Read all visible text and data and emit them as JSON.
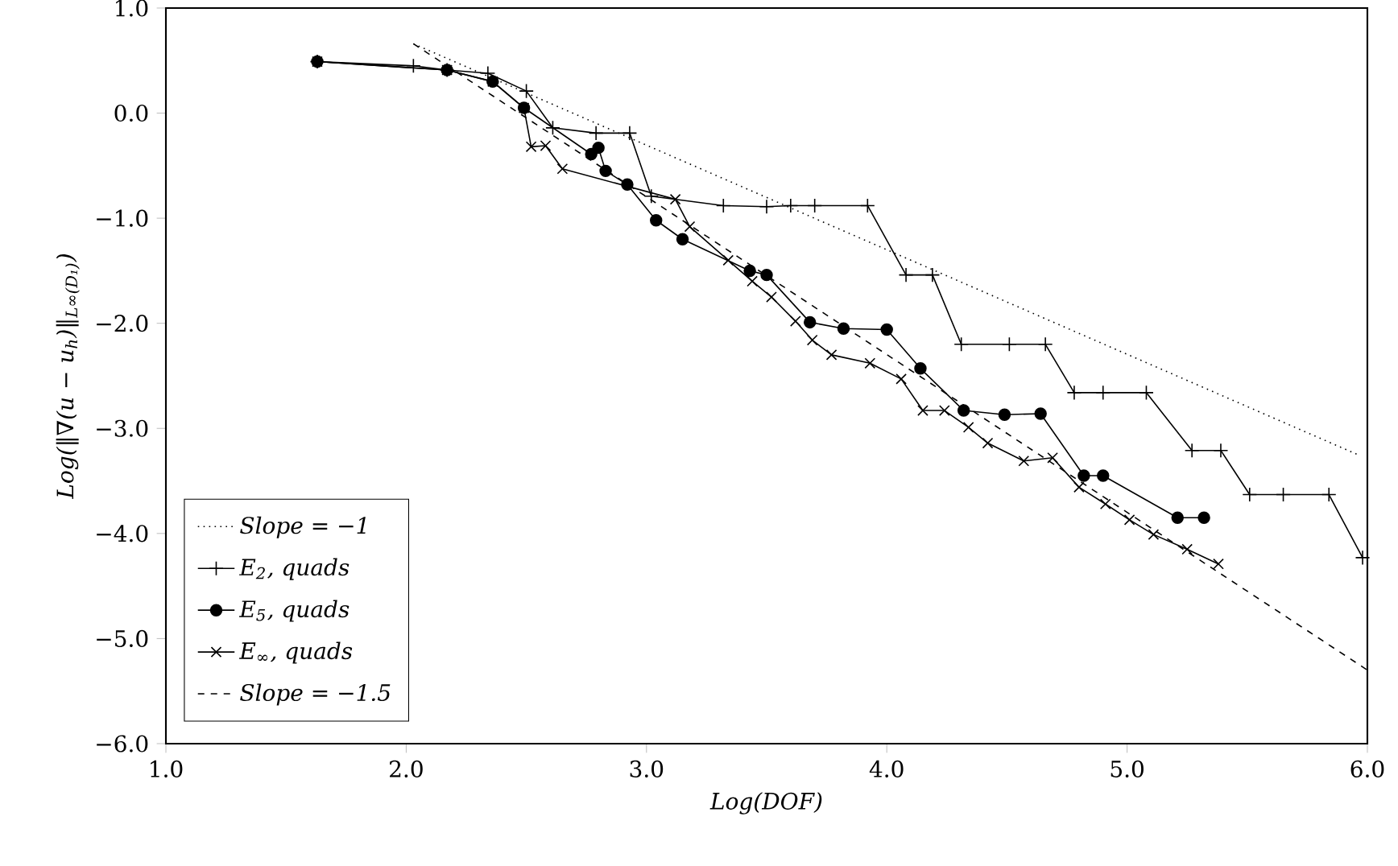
{
  "chart_data": {
    "type": "line",
    "xlabel": "Log(DOF)",
    "ylabel": "Log(‖∇(u − u$_{h}$)‖$_{L∞(D₁)}$)",
    "xlim": [
      1.0,
      6.0
    ],
    "ylim": [
      -6.0,
      1.0
    ],
    "xticks": [
      {
        "value": 1,
        "label": "1.0"
      },
      {
        "value": 2,
        "label": "2.0"
      },
      {
        "value": 3,
        "label": "3.0"
      },
      {
        "value": 4,
        "label": "4.0"
      },
      {
        "value": 5,
        "label": "5.0"
      },
      {
        "value": 6,
        "label": "6.0"
      }
    ],
    "yticks": [
      {
        "value": -6,
        "label": "−6.0"
      },
      {
        "value": -5,
        "label": "−5.0"
      },
      {
        "value": -4,
        "label": "−4.0"
      },
      {
        "value": -3,
        "label": "−3.0"
      },
      {
        "value": -2,
        "label": "−2.0"
      },
      {
        "value": -1,
        "label": "−1.0"
      },
      {
        "value": 0,
        "label": "0.0"
      },
      {
        "value": 1,
        "label": "1.0"
      }
    ],
    "legend": "bottom left",
    "grid": false,
    "series": [
      {
        "name": "Slope = −1",
        "color": "#000000",
        "marker": "none",
        "line_style": "dotted",
        "x": [
          2.03,
          5.96
        ],
        "values": [
          0.66,
          -3.25
        ]
      },
      {
        "name": "E$_{2}$, quads",
        "color": "#000000",
        "marker": "plus",
        "line_style": "solid",
        "x": [
          1.63,
          2.03,
          2.17,
          2.34,
          2.5,
          2.61,
          2.79,
          2.93,
          3.02,
          3.32,
          3.5,
          3.6,
          3.7,
          3.92,
          4.08,
          4.19,
          4.31,
          4.51,
          4.66,
          4.78,
          4.9,
          5.08,
          5.27,
          5.39,
          5.51,
          5.65,
          5.84,
          5.98
        ],
        "values": [
          0.49,
          0.45,
          0.41,
          0.38,
          0.21,
          -0.14,
          -0.19,
          -0.19,
          -0.79,
          -0.88,
          -0.89,
          -0.88,
          -0.88,
          -0.88,
          -1.54,
          -1.54,
          -2.2,
          -2.2,
          -2.2,
          -2.66,
          -2.66,
          -2.66,
          -3.21,
          -3.21,
          -3.63,
          -3.63,
          -3.63,
          -4.23
        ]
      },
      {
        "name": "E$_{5}$, quads",
        "color": "#000000",
        "marker": "circle",
        "line_style": "solid",
        "x": [
          1.63,
          2.17,
          2.36,
          2.49,
          2.77,
          2.8,
          2.83,
          2.92,
          3.04,
          3.15,
          3.43,
          3.5,
          3.68,
          3.82,
          4.0,
          4.14,
          4.32,
          4.49,
          4.64,
          4.82,
          4.9,
          5.21,
          5.32
        ],
        "values": [
          0.49,
          0.41,
          0.3,
          0.05,
          -0.39,
          -0.33,
          -0.55,
          -0.68,
          -1.02,
          -1.2,
          -1.5,
          -1.54,
          -1.99,
          -2.05,
          -2.06,
          -2.43,
          -2.83,
          -2.87,
          -2.86,
          -3.45,
          -3.45,
          -3.85,
          -3.85
        ]
      },
      {
        "name": "E$_{∞}$, quads",
        "color": "#000000",
        "marker": "cross",
        "line_style": "solid",
        "x": [
          1.63,
          2.17,
          2.36,
          2.49,
          2.52,
          2.58,
          2.65,
          3.12,
          3.18,
          3.34,
          3.44,
          3.52,
          3.62,
          3.69,
          3.77,
          3.93,
          4.06,
          4.15,
          4.24,
          4.34,
          4.42,
          4.57,
          4.69,
          4.8,
          4.91,
          5.01,
          5.11,
          5.25,
          5.38
        ],
        "values": [
          0.49,
          0.41,
          0.3,
          0.05,
          -0.32,
          -0.31,
          -0.53,
          -0.82,
          -1.08,
          -1.4,
          -1.6,
          -1.75,
          -1.98,
          -2.16,
          -2.3,
          -2.38,
          -2.53,
          -2.83,
          -2.83,
          -2.99,
          -3.14,
          -3.31,
          -3.28,
          -3.56,
          -3.72,
          -3.87,
          -4.01,
          -4.15,
          -4.29
        ]
      },
      {
        "name": "Slope = −1.5",
        "color": "#000000",
        "marker": "none",
        "line_style": "dashed",
        "x": [
          2.03,
          6.0
        ],
        "values": [
          0.66,
          -5.3
        ]
      }
    ]
  }
}
